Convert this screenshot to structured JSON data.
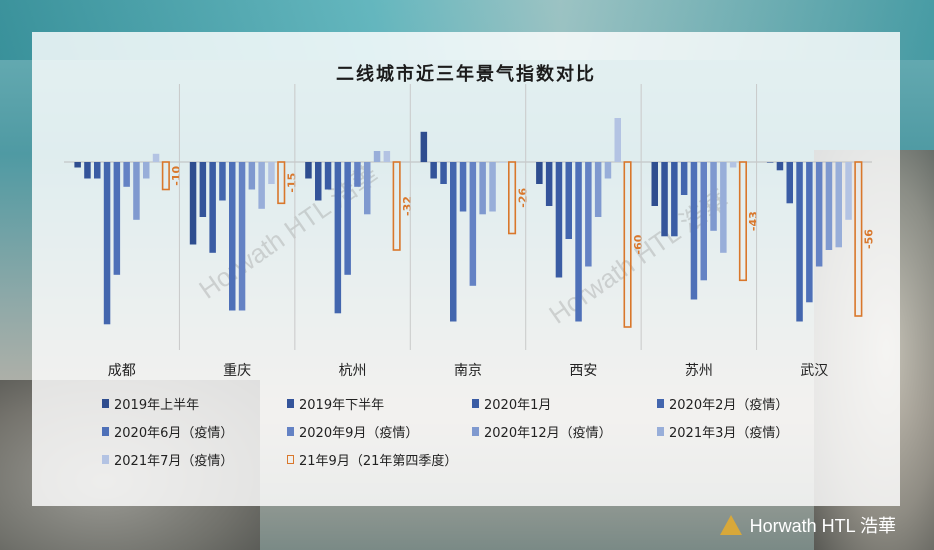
{
  "colors": {
    "series": [
      "#2e4d8f",
      "#34549a",
      "#3a5ca4",
      "#4366ae",
      "#4e70b8",
      "#6482c4",
      "#7f99cf",
      "#98aed9",
      "#b3c3e3",
      "#d9772b"
    ],
    "label_negative": "#d9772b",
    "divider": "#c9c9c9"
  },
  "watermark_text": "Horwath HTL 浩華",
  "brand": {
    "name": "Horwath HTL 浩華",
    "logo_icon": "horwath-triangle-logo-icon"
  },
  "chart_data": {
    "type": "bar",
    "title": "二线城市近三年景气指数对比",
    "categories": [
      "成都",
      "重庆",
      "杭州",
      "南京",
      "西安",
      "苏州",
      "武汉"
    ],
    "legend_position": "bottom",
    "grid": false,
    "series": [
      {
        "name": "2019年上半年",
        "values": [
          -2,
          -30,
          -6,
          11,
          -8,
          -16,
          0
        ],
        "style": "solid"
      },
      {
        "name": "2019年下半年",
        "values": [
          -6,
          -20,
          -14,
          -6,
          -16,
          -27,
          -3
        ],
        "style": "solid"
      },
      {
        "name": "2020年1月",
        "values": [
          -6,
          -33,
          -10,
          -8,
          -42,
          -27,
          -15
        ],
        "style": "solid"
      },
      {
        "name": "2020年2月（疫情）",
        "values": [
          -59,
          -14,
          -55,
          -58,
          -28,
          -12,
          -58
        ],
        "style": "solid"
      },
      {
        "name": "2020年6月（疫情）",
        "values": [
          -41,
          -54,
          -41,
          -18,
          -58,
          -50,
          -51
        ],
        "style": "solid"
      },
      {
        "name": "2020年9月（疫情）",
        "values": [
          -9,
          -54,
          -9,
          -45,
          -38,
          -43,
          -38
        ],
        "style": "solid"
      },
      {
        "name": "2020年12月（疫情）",
        "values": [
          -21,
          -10,
          -19,
          -19,
          -20,
          -25,
          -32
        ],
        "style": "solid"
      },
      {
        "name": "2021年3月（疫情）",
        "values": [
          -6,
          -17,
          4,
          -18,
          -6,
          -33,
          -31
        ],
        "style": "solid"
      },
      {
        "name": "2021年7月（疫情）",
        "values": [
          3,
          -8,
          4,
          0,
          16,
          -2,
          -21
        ],
        "style": "solid"
      },
      {
        "name": "21年9月（21年第四季度）",
        "values": [
          -10,
          -15,
          -32,
          -26,
          -60,
          -43,
          -56
        ],
        "style": "hollow"
      }
    ],
    "data_labels": [
      "-10",
      "-15",
      "-32",
      "-26",
      "-60",
      "-43",
      "-56"
    ],
    "ylim": [
      -65,
      15
    ]
  }
}
